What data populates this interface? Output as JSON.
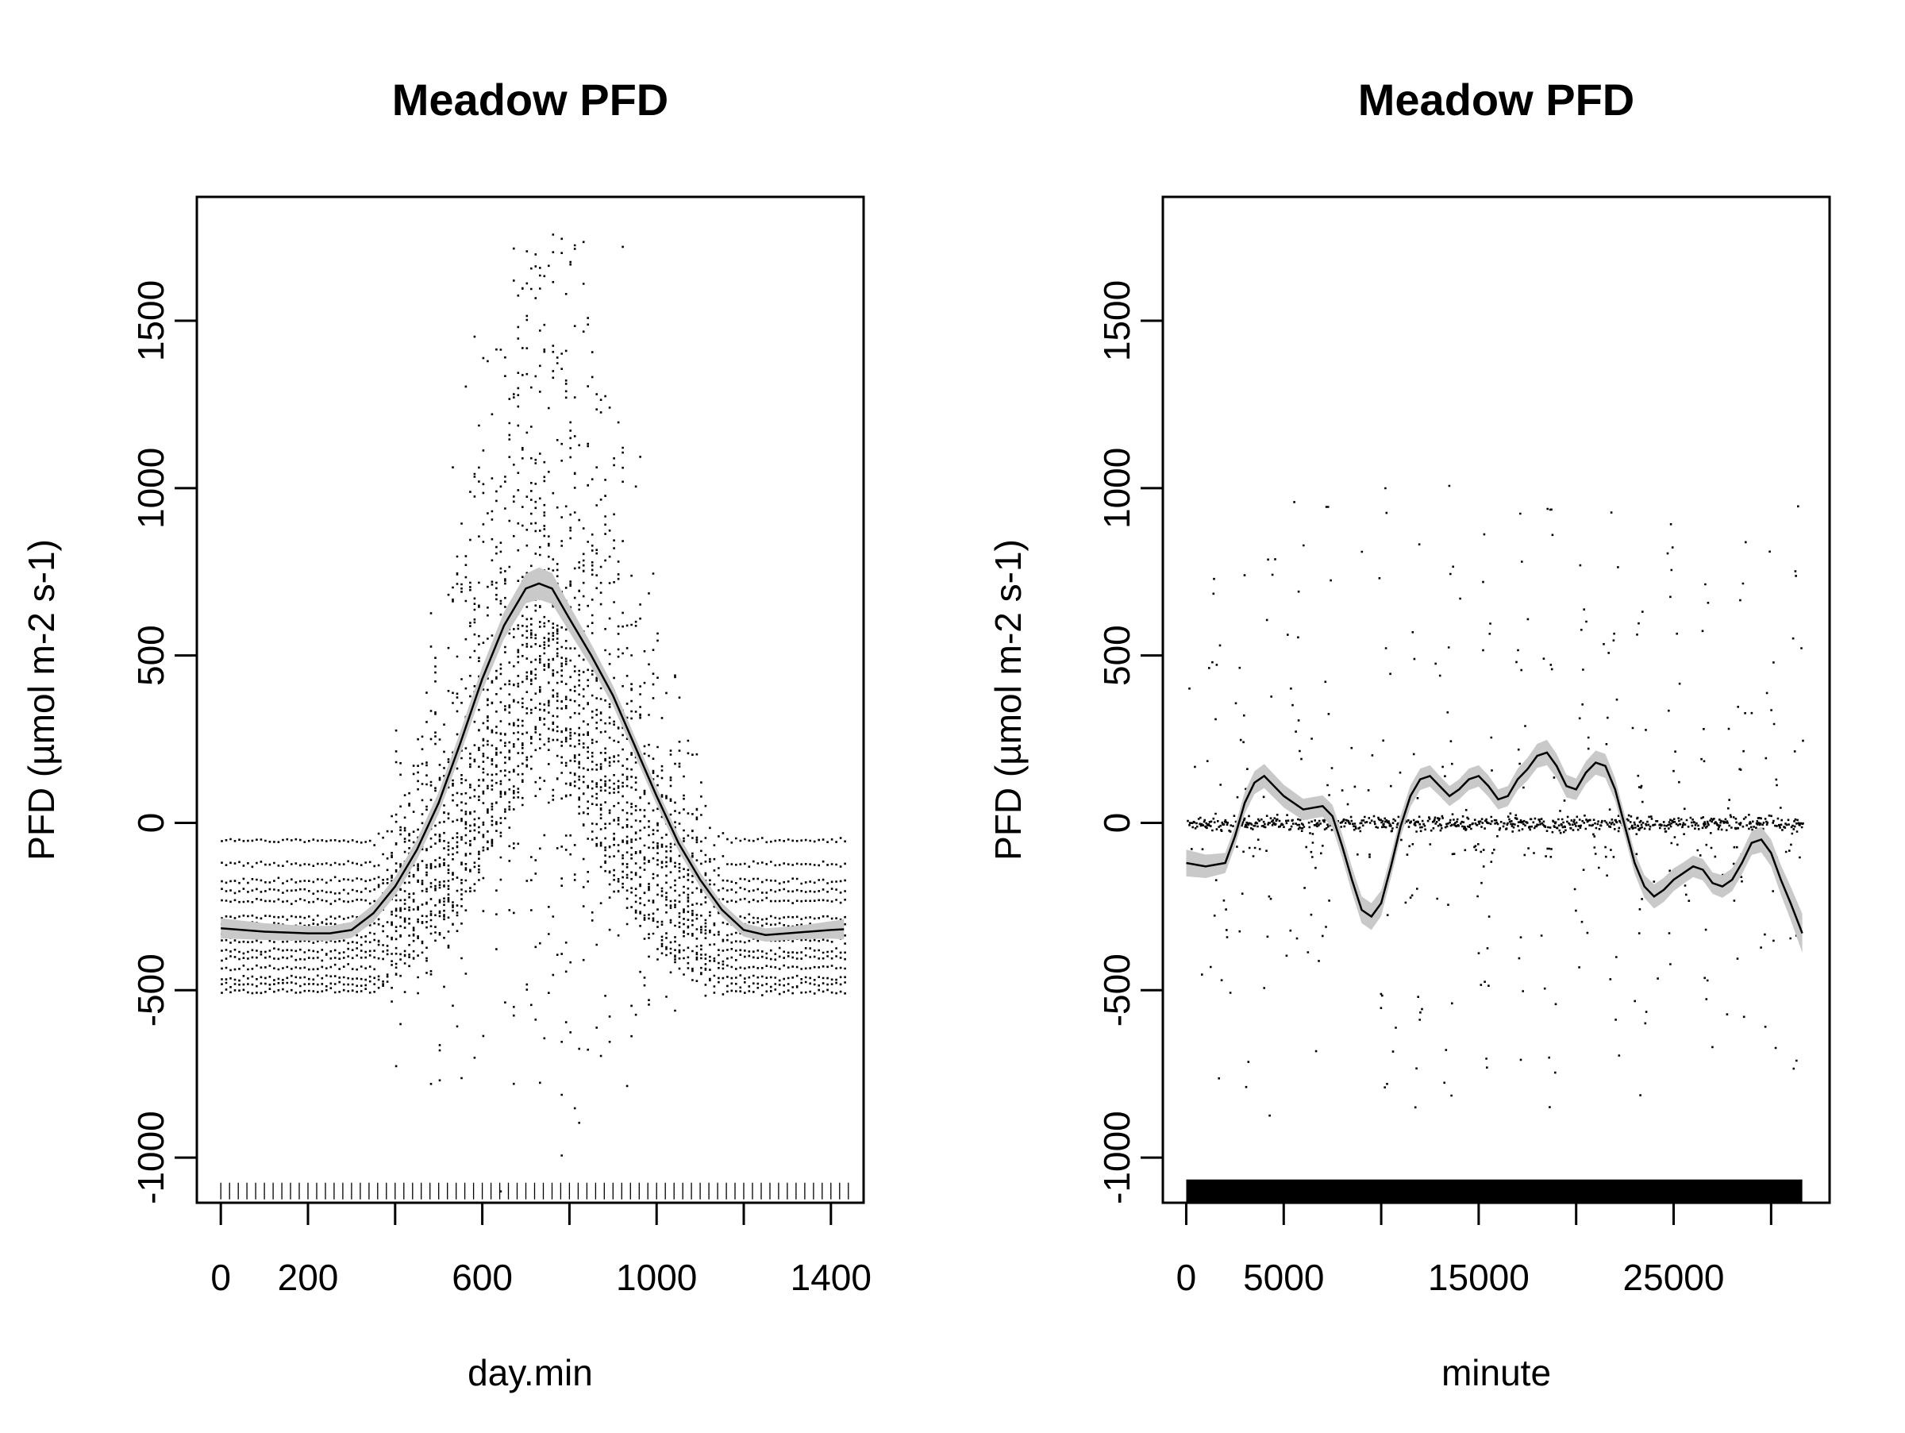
{
  "chart_data": [
    {
      "type": "scatter",
      "title": "Meadow PFD",
      "xlabel": "day.min",
      "ylabel": "PFD (µmol m-2 s-1)",
      "xlim": [
        -55,
        1475
      ],
      "ylim": [
        -1135,
        1870
      ],
      "xticks": [
        0,
        200,
        400,
        600,
        800,
        1000,
        1200,
        1400
      ],
      "xtick_labels": [
        "0",
        "200",
        "",
        "600",
        "",
        "1000",
        "",
        "1400"
      ],
      "yticks": [
        -1000,
        -500,
        0,
        500,
        1000,
        1500
      ],
      "ytick_labels": [
        "-1000",
        "-500",
        "0",
        "500",
        "1000",
        "1500"
      ],
      "smooth": {
        "x": [
          0,
          100,
          200,
          250,
          300,
          350,
          400,
          450,
          500,
          550,
          600,
          650,
          700,
          730,
          760,
          800,
          850,
          900,
          950,
          1000,
          1050,
          1100,
          1150,
          1200,
          1250,
          1300,
          1350,
          1400,
          1430
        ],
        "y": [
          -315,
          -325,
          -330,
          -330,
          -320,
          -270,
          -190,
          -80,
          60,
          240,
          430,
          590,
          700,
          715,
          700,
          610,
          500,
          380,
          230,
          80,
          -60,
          -170,
          -260,
          -320,
          -335,
          -330,
          -325,
          -320,
          -318
        ],
        "se": [
          30,
          25,
          22,
          22,
          24,
          26,
          28,
          30,
          32,
          34,
          36,
          40,
          44,
          48,
          46,
          40,
          34,
          30,
          28,
          26,
          24,
          22,
          20,
          20,
          20,
          20,
          22,
          26,
          30
        ]
      },
      "scatter_summary": {
        "night_levels": [
          -50,
          -120,
          -170,
          -200,
          -230,
          -280,
          -300,
          -330,
          -350,
          -380,
          -400,
          -430,
          -460,
          -480,
          -500
        ],
        "peak_max": 1770,
        "note_shape": "bell"
      },
      "rug": "every 20 day.min from 0 to 1440"
    },
    {
      "type": "scatter",
      "title": "Meadow PFD",
      "xlabel": "minute",
      "ylabel": "PFD (µmol m-2 s-1)",
      "xlim": [
        -1200,
        33000
      ],
      "ylim": [
        -1135,
        1870
      ],
      "xticks": [
        0,
        5000,
        10000,
        15000,
        20000,
        25000,
        30000
      ],
      "xtick_labels": [
        "0",
        "5000",
        "",
        "15000",
        "",
        "25000",
        ""
      ],
      "yticks": [
        -1000,
        -500,
        0,
        500,
        1000,
        1500
      ],
      "ytick_labels": [
        "-1000",
        "-500",
        "0",
        "500",
        "1000",
        "1500"
      ],
      "smooth": {
        "x": [
          0,
          1000,
          2000,
          2500,
          3000,
          3500,
          4000,
          5000,
          6000,
          7000,
          7500,
          8000,
          8500,
          9000,
          9500,
          10000,
          10500,
          11000,
          11500,
          12000,
          12500,
          13000,
          13500,
          14000,
          14500,
          15000,
          15500,
          16000,
          16500,
          17000,
          17500,
          18000,
          18500,
          19000,
          19500,
          20000,
          20500,
          21000,
          21500,
          22000,
          22500,
          23000,
          23500,
          24000,
          24500,
          25000,
          25500,
          26000,
          26500,
          27000,
          27500,
          28000,
          28500,
          29000,
          29500,
          30000,
          30500,
          31000,
          31600
        ],
        "y": [
          -120,
          -130,
          -120,
          -40,
          60,
          120,
          140,
          80,
          40,
          50,
          20,
          -70,
          -170,
          -260,
          -280,
          -240,
          -130,
          -10,
          80,
          130,
          140,
          110,
          80,
          100,
          130,
          140,
          110,
          70,
          80,
          130,
          160,
          200,
          210,
          170,
          110,
          100,
          150,
          180,
          170,
          100,
          -10,
          -120,
          -190,
          -220,
          -200,
          -170,
          -150,
          -130,
          -140,
          -180,
          -190,
          -170,
          -120,
          -60,
          -50,
          -90,
          -170,
          -240,
          -330
        ],
        "se": [
          40,
          35,
          30,
          30,
          32,
          34,
          36,
          34,
          32,
          32,
          34,
          36,
          38,
          40,
          40,
          38,
          34,
          32,
          32,
          32,
          32,
          30,
          30,
          30,
          32,
          32,
          32,
          30,
          30,
          32,
          34,
          36,
          38,
          36,
          34,
          32,
          34,
          36,
          36,
          34,
          32,
          32,
          34,
          36,
          36,
          34,
          32,
          32,
          32,
          32,
          34,
          34,
          34,
          36,
          38,
          40,
          44,
          50,
          58
        ]
      },
      "scatter_summary": {
        "spike_centers": [
          1500,
          2900,
          4200,
          5500,
          7200,
          10200,
          11800,
          13400,
          15400,
          17100,
          18600,
          20200,
          21800,
          23200,
          24800,
          26600,
          28400,
          30000,
          31300
        ],
        "night_blocks": [
          [
            0,
            900
          ],
          [
            2400,
            4100
          ],
          [
            5500,
            7000
          ],
          [
            8200,
            10000
          ],
          [
            11200,
            12600
          ],
          [
            14500,
            15900
          ],
          [
            17300,
            18700
          ],
          [
            20500,
            22100
          ],
          [
            24000,
            25300
          ],
          [
            25900,
            27100
          ],
          [
            27700,
            29300
          ],
          [
            29900,
            31400
          ]
        ]
      },
      "rug": "dense rug from 0 to 31600"
    }
  ]
}
